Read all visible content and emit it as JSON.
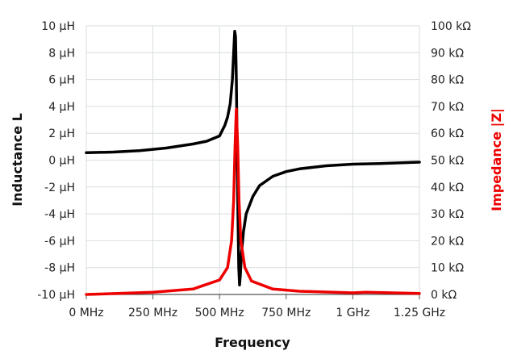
{
  "chart_data": {
    "type": "line",
    "xlabel": "Frequency",
    "ylabel": "Inductance L",
    "y2label": "Impedance |Z|",
    "xlim": [
      0,
      1250
    ],
    "ylim": [
      -10,
      10
    ],
    "y2lim": [
      0,
      100
    ],
    "x_unit": "MHz",
    "x_ticks": [
      0,
      250,
      500,
      750,
      1000,
      1250
    ],
    "x_tick_labels": [
      "0 MHz",
      "250 MHz",
      "500 MHz",
      "750 MHz",
      "1 GHz",
      "1.25 GHz"
    ],
    "y_ticks": [
      10,
      8,
      6,
      4,
      2,
      0,
      -2,
      -4,
      -6,
      -8,
      -10
    ],
    "y_tick_labels": [
      "10 µH",
      "8 µH",
      "6 µH",
      "4 µH",
      "2 µH",
      "0 µH",
      "-2 µH",
      "-4 µH",
      "-6 µH",
      "-8 µH",
      "-10 µH"
    ],
    "y2_ticks": [
      100,
      90,
      80,
      70,
      60,
      50,
      40,
      30,
      20,
      10,
      0
    ],
    "y2_tick_labels": [
      "100 kΩ",
      "90 kΩ",
      "80 kΩ",
      "70 kΩ",
      "60 kΩ",
      "50 kΩ",
      "40 kΩ",
      "30 kΩ",
      "20 kΩ",
      "10 kΩ",
      "0 kΩ"
    ],
    "grid": true,
    "series": [
      {
        "axis": "left",
        "color": "#000000",
        "x": [
          0,
          100,
          200,
          300,
          400,
          450,
          500,
          520,
          530,
          540,
          548,
          553,
          557,
          560,
          563,
          566,
          569,
          572,
          575,
          578,
          582,
          590,
          600,
          625,
          650,
          700,
          750,
          800,
          900,
          1000,
          1100,
          1250
        ],
        "y": [
          0.55,
          0.6,
          0.7,
          0.9,
          1.2,
          1.4,
          1.8,
          2.6,
          3.2,
          4.2,
          6,
          8,
          9.6,
          9.2,
          6,
          1,
          -4,
          -8,
          -9.3,
          -8.5,
          -7,
          -5.3,
          -4.0,
          -2.7,
          -1.9,
          -1.2,
          -0.85,
          -0.65,
          -0.42,
          -0.3,
          -0.25,
          -0.15
        ]
      },
      {
        "axis": "right",
        "color": "#ee0000",
        "x": [
          0,
          250,
          400,
          500,
          530,
          545,
          553,
          558,
          563,
          568,
          573,
          580,
          595,
          620,
          700,
          800,
          1000,
          1050,
          1250
        ],
        "y": [
          0,
          0.8,
          2,
          5.4,
          10,
          20,
          35,
          55,
          69,
          55,
          35,
          20,
          10,
          5,
          2,
          1.2,
          0.6,
          0.8,
          0.4
        ]
      }
    ]
  }
}
